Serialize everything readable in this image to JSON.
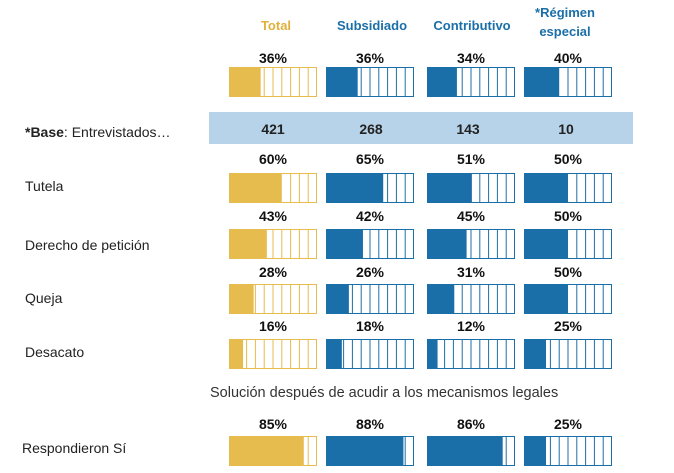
{
  "headers": {
    "total": "Total",
    "subsidiado": "Subsidiado",
    "contributivo": "Contributivo",
    "regimen_line1": "*Régimen",
    "regimen_line2": "especial"
  },
  "colors": {
    "total": "#e7bc4f",
    "others": "#1b6fa8",
    "base_band": "#b7d3e9",
    "header_total": "#e0b13b",
    "header_others": "#1b6fa8"
  },
  "base": {
    "label_bold": "*Base",
    "label_rest": ": Entrevistados…",
    "values": [
      "421",
      "268",
      "143",
      "10"
    ]
  },
  "subtitle": "Solución después de acudir a los mecanismos legales",
  "chart_data": {
    "type": "table",
    "title": "",
    "columns": [
      "Total",
      "Subsidiado",
      "Contributivo",
      "*Régimen especial"
    ],
    "rows": [
      {
        "label": "",
        "values": [
          36,
          36,
          34,
          40
        ],
        "texts": [
          "36%",
          "36%",
          "34%",
          "40%"
        ]
      },
      {
        "label": "Tutela",
        "values": [
          60,
          65,
          51,
          50
        ],
        "texts": [
          "60%",
          "65%",
          "51%",
          "50%"
        ]
      },
      {
        "label": "Derecho de petición",
        "values": [
          43,
          42,
          45,
          50
        ],
        "texts": [
          "43%",
          "42%",
          "45%",
          "50%"
        ]
      },
      {
        "label": "Queja",
        "values": [
          28,
          26,
          31,
          50
        ],
        "texts": [
          "28%",
          "26%",
          "31%",
          "50%"
        ]
      },
      {
        "label": "Desacato",
        "values": [
          16,
          18,
          12,
          25
        ],
        "texts": [
          "16%",
          "18%",
          "12%",
          "25%"
        ]
      },
      {
        "label": "Respondieron Sí",
        "values": [
          85,
          88,
          86,
          25
        ],
        "texts": [
          "85%",
          "88%",
          "86%",
          "25%"
        ]
      }
    ],
    "base_values": [
      421,
      268,
      143,
      10
    ],
    "unit": "%"
  }
}
